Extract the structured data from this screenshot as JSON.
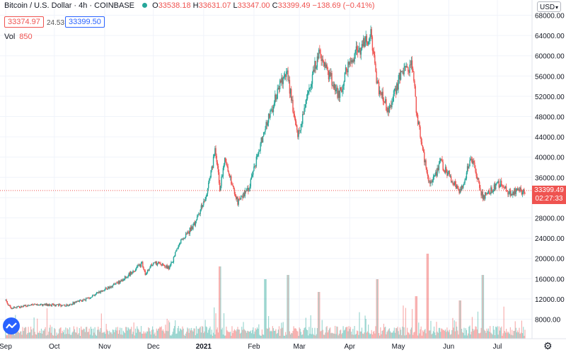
{
  "header": {
    "symbol_title": "Bitcoin / U.S. Dollar · 4h · COINBASE",
    "open_label": "O",
    "open": "33538.18",
    "high_label": "H",
    "high": "33631.07",
    "low_label": "L",
    "low": "33347.00",
    "close_label": "C",
    "close": "33399.49",
    "change": "−138.69 (−0.41%)",
    "bid": "33374.97",
    "spread": "24.53",
    "ask": "33399.50",
    "volume_label": "Vol",
    "volume_value": "850"
  },
  "currency_selector": "USD",
  "price_label": {
    "price": "33399.49",
    "countdown": "02:27:33"
  },
  "colors": {
    "up": "#26a69a",
    "down": "#ef5350",
    "grid": "#f0f3fa",
    "last_price_line": "#ef5350",
    "logo": "#2962ff"
  },
  "icons": {
    "logo": "tradingview-logo-icon",
    "settings": "gear-icon",
    "chevron": "chevron-down-icon"
  },
  "chart_data": {
    "type": "candlestick",
    "timeframe": "4h",
    "y_ticks": [
      8000,
      12000,
      16000,
      20000,
      24000,
      28000,
      32000,
      36000,
      40000,
      44000,
      48000,
      52000,
      56000,
      60000,
      64000,
      68000
    ],
    "y_tick_labels": [
      "8000.00",
      "12000.00",
      "16000.00",
      "20000.00",
      "24000.00",
      "28000.00",
      "32000.00",
      "36000.00",
      "40000.00",
      "44000.00",
      "48000.00",
      "52000.00",
      "56000.00",
      "60000.00",
      "64000.00",
      "68000.00"
    ],
    "x_tick_labels": [
      "Sep",
      "Oct",
      "Nov",
      "Dec",
      "2021",
      "Feb",
      "Mar",
      "Apr",
      "May",
      "Jun",
      "Jul"
    ],
    "x_tick_dates": [
      "2020-09-01",
      "2020-10-01",
      "2020-11-01",
      "2020-12-01",
      "2021-01-01",
      "2021-02-01",
      "2021-03-01",
      "2021-04-01",
      "2021-05-01",
      "2021-06-01",
      "2021-07-01"
    ],
    "x_range": [
      "2020-09-01",
      "2021-07-18"
    ],
    "ylim": [
      4000,
      70000
    ],
    "last_price": 33399.49,
    "price_path": [
      {
        "d": "2020-09-01",
        "v": 11800
      },
      {
        "d": "2020-09-04",
        "v": 10200
      },
      {
        "d": "2020-09-20",
        "v": 10900
      },
      {
        "d": "2020-10-08",
        "v": 10700
      },
      {
        "d": "2020-10-20",
        "v": 11900
      },
      {
        "d": "2020-10-31",
        "v": 13800
      },
      {
        "d": "2020-11-10",
        "v": 15300
      },
      {
        "d": "2020-11-24",
        "v": 19000
      },
      {
        "d": "2020-11-26",
        "v": 16600
      },
      {
        "d": "2020-12-01",
        "v": 19300
      },
      {
        "d": "2020-12-11",
        "v": 18000
      },
      {
        "d": "2020-12-17",
        "v": 23000
      },
      {
        "d": "2020-12-27",
        "v": 27000
      },
      {
        "d": "2021-01-03",
        "v": 33000
      },
      {
        "d": "2021-01-08",
        "v": 41000
      },
      {
        "d": "2021-01-11",
        "v": 34000
      },
      {
        "d": "2021-01-14",
        "v": 39000
      },
      {
        "d": "2021-01-22",
        "v": 31000
      },
      {
        "d": "2021-01-29",
        "v": 34000
      },
      {
        "d": "2021-02-08",
        "v": 46000
      },
      {
        "d": "2021-02-21",
        "v": 57500
      },
      {
        "d": "2021-02-28",
        "v": 44000
      },
      {
        "d": "2021-03-13",
        "v": 61000
      },
      {
        "d": "2021-03-25",
        "v": 52000
      },
      {
        "d": "2021-04-01",
        "v": 59000
      },
      {
        "d": "2021-04-14",
        "v": 64000
      },
      {
        "d": "2021-04-18",
        "v": 54000
      },
      {
        "d": "2021-04-25",
        "v": 49000
      },
      {
        "d": "2021-05-03",
        "v": 57000
      },
      {
        "d": "2021-05-10",
        "v": 58000
      },
      {
        "d": "2021-05-12",
        "v": 49000
      },
      {
        "d": "2021-05-19",
        "v": 36000
      },
      {
        "d": "2021-05-22",
        "v": 35000
      },
      {
        "d": "2021-05-27",
        "v": 39000
      },
      {
        "d": "2021-06-08",
        "v": 33000
      },
      {
        "d": "2021-06-15",
        "v": 40000
      },
      {
        "d": "2021-06-22",
        "v": 32000
      },
      {
        "d": "2021-07-03",
        "v": 35000
      },
      {
        "d": "2021-07-08",
        "v": 33000
      },
      {
        "d": "2021-07-18",
        "v": 33399
      }
    ],
    "volume_spikes": [
      {
        "d": "2021-01-11",
        "v": 0.85
      },
      {
        "d": "2021-02-08",
        "v": 0.7
      },
      {
        "d": "2021-02-22",
        "v": 0.75
      },
      {
        "d": "2021-03-13",
        "v": 0.55
      },
      {
        "d": "2021-04-18",
        "v": 0.7
      },
      {
        "d": "2021-05-19",
        "v": 1.0
      },
      {
        "d": "2021-05-12",
        "v": 0.5
      },
      {
        "d": "2021-06-22",
        "v": 0.75
      },
      {
        "d": "2021-06-08",
        "v": 0.45
      }
    ]
  }
}
